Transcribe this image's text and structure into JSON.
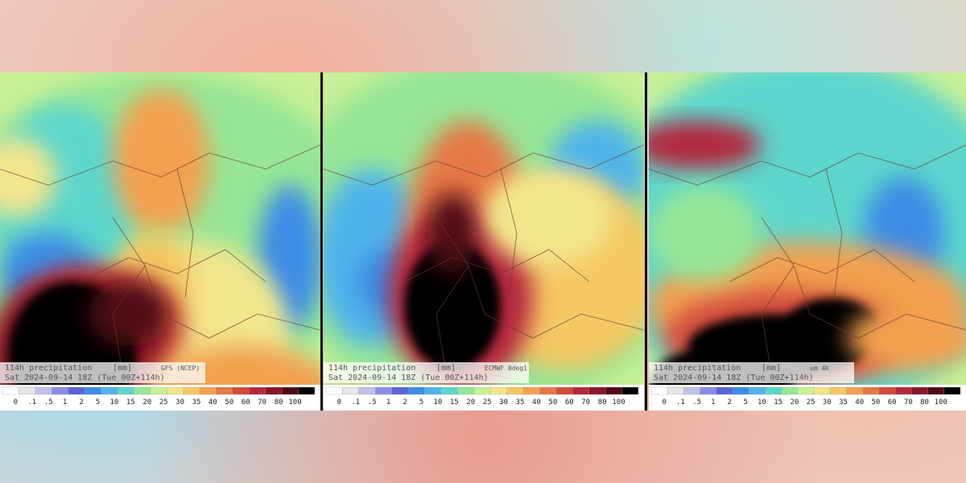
{
  "panels": [
    {
      "title": "114h precipitation",
      "unit": "[mm]",
      "model": "GFS (NCEP)",
      "date": "Sat 2024-09-14 18Z (Tue 00Z+114h)"
    },
    {
      "title": "114h precipitation",
      "unit": "[mm]",
      "model": "ECMWF 0deg1",
      "date": "Sat 2024-09-14 18Z (Tue 00Z+114h)"
    },
    {
      "title": "114h precipitation",
      "unit": "[mm]",
      "model": "um 4k",
      "date": "Sat 2024-09-14 18Z (Tue 00Z+114h)"
    }
  ],
  "legend": {
    "labels": [
      "0",
      ".1",
      ".5",
      "1",
      "2",
      "5",
      "10",
      "15",
      "20",
      "25",
      "30",
      "35",
      "40",
      "50",
      "60",
      "70",
      "80",
      "100"
    ],
    "colors": [
      "#ffffff",
      "#e6e6e6",
      "#c0c0e8",
      "#8c8ce6",
      "#5a64d8",
      "#3c8ce6",
      "#50b4ea",
      "#5cd6cc",
      "#96e696",
      "#c8f096",
      "#f2e68c",
      "#f5c864",
      "#f2a050",
      "#e67846",
      "#d24b3c",
      "#b4283c",
      "#8c1428",
      "#500a14",
      "#000000"
    ]
  }
}
